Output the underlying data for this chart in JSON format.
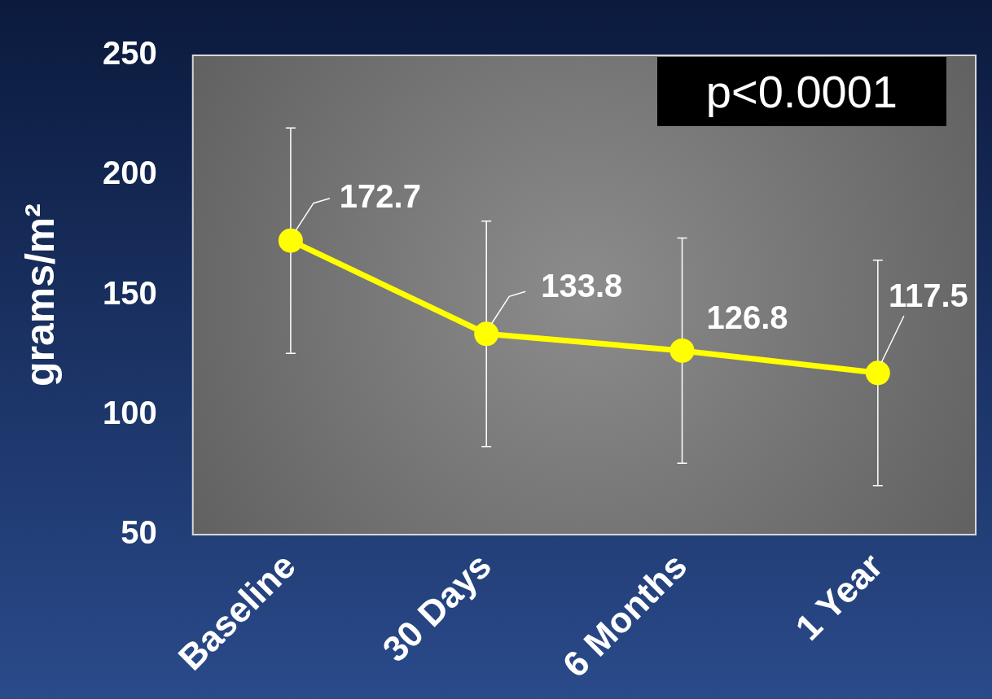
{
  "chart_data": {
    "type": "line",
    "ylabel": "grams/m²",
    "categories": [
      "Baseline",
      "30 Days",
      "6 Months",
      "1 Year"
    ],
    "series": [
      {
        "color": "#ffff00",
        "values": [
          172.7,
          133.8,
          126.8,
          117.5
        ],
        "errors": [
          47,
          47,
          47,
          47
        ]
      }
    ],
    "ylim": [
      50,
      250
    ],
    "yticks": [
      50,
      100,
      150,
      200,
      250
    ],
    "grid": false,
    "legend": false,
    "marker": "circle",
    "line_style": "solid",
    "data_labels": true,
    "annotations": [
      "p<0.0001"
    ]
  }
}
